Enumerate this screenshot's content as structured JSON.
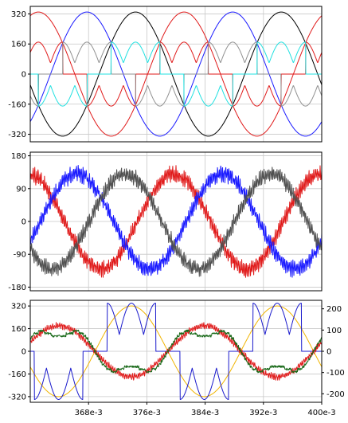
{
  "chart_data": [
    {
      "type": "line",
      "title": "",
      "xlabel": "",
      "ylabel": "",
      "xlim": [
        0.36,
        0.4
      ],
      "ylim": [
        -360,
        360
      ],
      "y_ticks": [
        320,
        160,
        0,
        -160,
        -320
      ],
      "y_tick_labels": [
        "320",
        "160",
        "0",
        "-160",
        "-320"
      ],
      "grid": true,
      "series": [
        {
          "color": "#000000",
          "kind": "sine",
          "amplitude": 330,
          "phase_deg": 190
        },
        {
          "color": "#1a1aff",
          "kind": "sine",
          "amplitude": 330,
          "phase_deg": 310
        },
        {
          "color": "#e01a1a",
          "kind": "sine_with_notch",
          "amplitude": 330,
          "phase_deg": 70
        },
        {
          "color": "#e01a1a",
          "kind": "switched_current",
          "amplitude": 170,
          "phase_deg": 70
        },
        {
          "color": "#909090",
          "kind": "switched_current",
          "amplitude": 170,
          "phase_deg": 310
        },
        {
          "color": "#20e0e0",
          "kind": "switched_current",
          "amplitude": 170,
          "phase_deg": 190
        }
      ]
    },
    {
      "type": "line",
      "title": "",
      "xlabel": "",
      "ylabel": "",
      "xlim": [
        0.36,
        0.4
      ],
      "ylim": [
        -190,
        190
      ],
      "y_ticks": [
        180,
        90,
        0,
        -90,
        -180
      ],
      "y_tick_labels": [
        "180",
        "90",
        "0",
        "-90",
        "-180"
      ],
      "grid": true,
      "series": [
        {
          "color": "#e01a1a",
          "kind": "noisy_sine",
          "amplitude": 130,
          "phase_deg": 95
        },
        {
          "color": "#1a1aff",
          "kind": "noisy_sine",
          "amplitude": 130,
          "phase_deg": 335
        },
        {
          "color": "#505050",
          "kind": "noisy_sine",
          "amplitude": 130,
          "phase_deg": 215
        }
      ]
    },
    {
      "type": "line",
      "title": "",
      "xlabel": "",
      "ylabel": "",
      "xlim": [
        0.36,
        0.4
      ],
      "ylim": [
        -360,
        360
      ],
      "y2lim": [
        -240,
        240
      ],
      "y_ticks": [
        320,
        160,
        0,
        -160,
        -320
      ],
      "y_tick_labels": [
        "320",
        "160",
        "0",
        "-160",
        "-320"
      ],
      "y2_ticks": [
        200,
        100,
        0,
        -100,
        -200
      ],
      "y2_tick_labels": [
        "200",
        "100",
        "0",
        "-100",
        "-200"
      ],
      "x_ticks": [
        0.368,
        0.376,
        0.384,
        0.392,
        0.4
      ],
      "x_tick_labels": [
        "368e-3",
        "376e-3",
        "384e-3",
        "392e-3",
        "400e-3"
      ],
      "grid": true,
      "series": [
        {
          "color": "#f0b400",
          "kind": "sine",
          "amplitude": 320,
          "phase_deg": 200
        },
        {
          "color": "#1a1acc",
          "kind": "switched_current",
          "amplitude": 340,
          "phase_deg": 200
        },
        {
          "color": "#e01a1a",
          "kind": "noisy_sine_sec",
          "amplitude": 120,
          "phase_deg": 20
        },
        {
          "color": "#1a6a1a",
          "kind": "ripple_current",
          "amplitude": 100,
          "phase_deg": 20
        }
      ]
    }
  ]
}
